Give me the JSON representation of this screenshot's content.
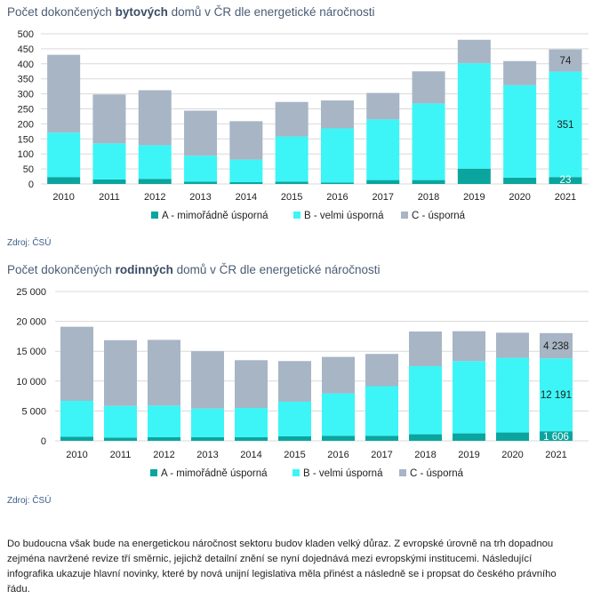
{
  "colors": {
    "A": "#0aa59f",
    "B": "#3df5f6",
    "C": "#a7b5c5"
  },
  "chart_data": [
    {
      "type": "bar",
      "stacked": true,
      "title_parts": [
        "Počet dokončených ",
        "bytových",
        " domů v ČR dle energetické náročnosti"
      ],
      "categories": [
        "2010",
        "2011",
        "2012",
        "2013",
        "2014",
        "2015",
        "2016",
        "2017",
        "2018",
        "2019",
        "2020",
        "2021"
      ],
      "series": [
        {
          "key": "A",
          "name": "A - mimořádně úsporná",
          "values": [
            23,
            15,
            17,
            8,
            6,
            8,
            5,
            13,
            13,
            51,
            21,
            23
          ]
        },
        {
          "key": "B",
          "name": "B - velmi úsporná",
          "values": [
            148,
            120,
            112,
            86,
            75,
            150,
            180,
            202,
            255,
            351,
            308,
            351
          ]
        },
        {
          "key": "C",
          "name": "C - úsporná",
          "values": [
            259,
            163,
            183,
            150,
            128,
            115,
            93,
            88,
            107,
            78,
            80,
            74
          ]
        }
      ],
      "ylim": [
        0,
        500
      ],
      "yticks": [
        0,
        50,
        100,
        150,
        200,
        250,
        300,
        350,
        400,
        450,
        500
      ],
      "ytick_labels": [
        "0",
        "50",
        "100",
        "150",
        "200",
        "250",
        "300",
        "350",
        "400",
        "450",
        "500"
      ],
      "data_labels": [
        {
          "category": "2021",
          "A": "23",
          "B": "351",
          "C": "74"
        }
      ],
      "legend": "bottom",
      "grid": true,
      "source": "Zdroj: ČSÚ"
    },
    {
      "type": "bar",
      "stacked": true,
      "title_parts": [
        "Počet dokončených ",
        "rodinných",
        " domů v ČR dle energetické náročnosti"
      ],
      "categories": [
        "2010",
        "2011",
        "2012",
        "2013",
        "2014",
        "2015",
        "2016",
        "2017",
        "2018",
        "2019",
        "2020",
        "2021"
      ],
      "series": [
        {
          "key": "A",
          "name": "A - mimořádně úsporná",
          "values": [
            700,
            550,
            600,
            600,
            600,
            750,
            850,
            850,
            1100,
            1250,
            1400,
            1606
          ]
        },
        {
          "key": "B",
          "name": "B - velmi úsporná",
          "values": [
            6000,
            5300,
            5300,
            4800,
            4900,
            5800,
            7100,
            8300,
            11400,
            12100,
            12500,
            12191
          ]
        },
        {
          "key": "C",
          "name": "C - úsporná",
          "values": [
            12400,
            11000,
            11000,
            9600,
            8000,
            6800,
            6100,
            5400,
            5800,
            5000,
            4200,
            4238
          ]
        }
      ],
      "ylim": [
        0,
        25000
      ],
      "yticks": [
        0,
        5000,
        10000,
        15000,
        20000,
        25000
      ],
      "ytick_labels": [
        "0",
        "5 000",
        "10 000",
        "15 000",
        "20 000",
        "25 000"
      ],
      "data_labels": [
        {
          "category": "2021",
          "A": "1 606",
          "B": "12 191",
          "C": "4 238"
        }
      ],
      "legend": "bottom",
      "grid": true,
      "source": "Zdroj: ČSÚ"
    }
  ],
  "paragraph_lines": [
    "Do budoucna však bude na energetickou náročnost sektoru budov kladen velký důraz. Z evropské úrovně na trh dopadnou",
    "zejména navržené revize tří směrnic, jejichž detailní znění se nyní dojednává mezi evropskými institucemi. Následující",
    "infografika ukazuje hlavní novinky, které by nová unijní legislativa měla přinést a následně se i propsat do českého právního",
    "řádu."
  ]
}
